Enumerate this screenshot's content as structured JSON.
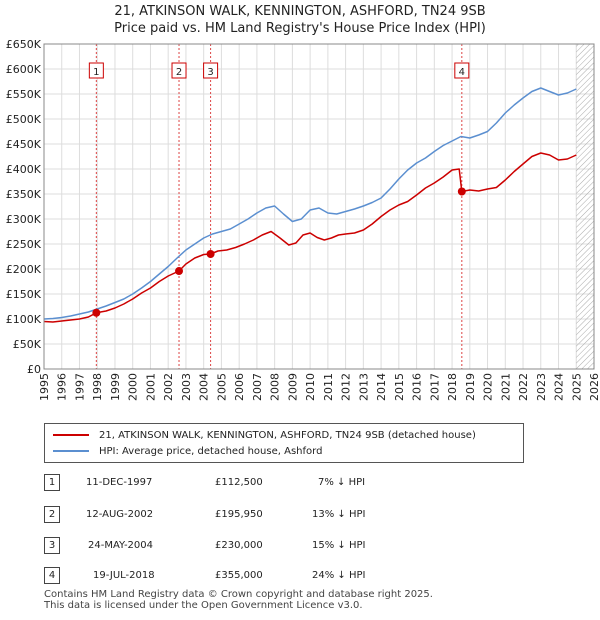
{
  "header": {
    "title": "21, ATKINSON WALK, KENNINGTON, ASHFORD, TN24 9SB",
    "subtitle": "Price paid vs. HM Land Registry's House Price Index (HPI)"
  },
  "chart_data": {
    "type": "line",
    "xlim": [
      1995,
      2026
    ],
    "ylim": [
      0,
      650000
    ],
    "x_ticks": [
      "1995",
      "1996",
      "1997",
      "1998",
      "1999",
      "2000",
      "2001",
      "2002",
      "2003",
      "2004",
      "2005",
      "2006",
      "2007",
      "2008",
      "2009",
      "2010",
      "2011",
      "2012",
      "2013",
      "2014",
      "2015",
      "2016",
      "2017",
      "2018",
      "2019",
      "2020",
      "2021",
      "2022",
      "2023",
      "2024",
      "2025",
      "2026"
    ],
    "y_ticks": [
      {
        "value": 0,
        "label": "£0"
      },
      {
        "value": 50000,
        "label": "£50K"
      },
      {
        "value": 100000,
        "label": "£100K"
      },
      {
        "value": 150000,
        "label": "£150K"
      },
      {
        "value": 200000,
        "label": "£200K"
      },
      {
        "value": 250000,
        "label": "£250K"
      },
      {
        "value": 300000,
        "label": "£300K"
      },
      {
        "value": 350000,
        "label": "£350K"
      },
      {
        "value": 400000,
        "label": "£400K"
      },
      {
        "value": 450000,
        "label": "£450K"
      },
      {
        "value": 500000,
        "label": "£500K"
      },
      {
        "value": 550000,
        "label": "£550K"
      },
      {
        "value": 600000,
        "label": "£600K"
      },
      {
        "value": 650000,
        "label": "£650K"
      }
    ],
    "grid": true,
    "hatched_after": 2025.0,
    "series": [
      {
        "name": "21, ATKINSON WALK, KENNINGTON, ASHFORD, TN24 9SB (detached house)",
        "color": "#cc0000",
        "x": [
          1995.0,
          1995.5,
          1996.0,
          1996.5,
          1997.0,
          1997.5,
          1997.95,
          1998.5,
          1999.0,
          1999.5,
          2000.0,
          2000.5,
          2001.0,
          2001.5,
          2002.0,
          2002.61,
          2003.0,
          2003.5,
          2004.0,
          2004.39,
          2004.8,
          2005.3,
          2005.8,
          2006.3,
          2006.8,
          2007.3,
          2007.8,
          2008.3,
          2008.8,
          2009.2,
          2009.6,
          2010.0,
          2010.4,
          2010.8,
          2011.2,
          2011.6,
          2012.0,
          2012.5,
          2013.0,
          2013.5,
          2014.0,
          2014.5,
          2015.0,
          2015.5,
          2016.0,
          2016.5,
          2017.0,
          2017.5,
          2018.0,
          2018.4,
          2018.55,
          2019.0,
          2019.5,
          2020.0,
          2020.5,
          2021.0,
          2021.5,
          2022.0,
          2022.5,
          2023.0,
          2023.5,
          2024.0,
          2024.5,
          2025.0
        ],
        "values": [
          95000,
          94000,
          96000,
          98000,
          100000,
          104000,
          112500,
          116000,
          122000,
          130000,
          140000,
          152000,
          162000,
          175000,
          186000,
          195950,
          210000,
          222000,
          229000,
          230000,
          236000,
          238000,
          243000,
          250000,
          258000,
          268000,
          275000,
          262000,
          248000,
          252000,
          268000,
          272000,
          263000,
          258000,
          262000,
          268000,
          270000,
          272000,
          278000,
          290000,
          305000,
          318000,
          328000,
          335000,
          348000,
          362000,
          372000,
          384000,
          398000,
          400000,
          355000,
          358000,
          356000,
          360000,
          363000,
          378000,
          395000,
          410000,
          425000,
          432000,
          428000,
          418000,
          420000,
          428000
        ]
      },
      {
        "name": "HPI: Average price, detached house, Ashford",
        "color": "#5b8fd0",
        "x": [
          1995.0,
          1995.5,
          1996.0,
          1996.5,
          1997.0,
          1997.5,
          1998.0,
          1998.5,
          1999.0,
          1999.5,
          2000.0,
          2000.5,
          2001.0,
          2001.5,
          2002.0,
          2002.5,
          2003.0,
          2003.5,
          2004.0,
          2004.5,
          2005.0,
          2005.5,
          2006.0,
          2006.5,
          2007.0,
          2007.5,
          2008.0,
          2008.5,
          2009.0,
          2009.5,
          2010.0,
          2010.5,
          2011.0,
          2011.5,
          2012.0,
          2012.5,
          2013.0,
          2013.5,
          2014.0,
          2014.5,
          2015.0,
          2015.5,
          2016.0,
          2016.5,
          2017.0,
          2017.5,
          2018.0,
          2018.5,
          2019.0,
          2019.5,
          2020.0,
          2020.5,
          2021.0,
          2021.5,
          2022.0,
          2022.5,
          2023.0,
          2023.5,
          2024.0,
          2024.5,
          2025.0
        ],
        "values": [
          100000,
          101000,
          103000,
          106000,
          110000,
          114000,
          120000,
          126000,
          133000,
          140000,
          150000,
          162000,
          175000,
          190000,
          205000,
          222000,
          238000,
          250000,
          262000,
          270000,
          275000,
          280000,
          290000,
          300000,
          312000,
          322000,
          326000,
          310000,
          295000,
          300000,
          318000,
          322000,
          312000,
          310000,
          315000,
          320000,
          326000,
          333000,
          342000,
          360000,
          380000,
          398000,
          412000,
          422000,
          435000,
          447000,
          456000,
          465000,
          462000,
          468000,
          475000,
          492000,
          512000,
          528000,
          542000,
          555000,
          562000,
          555000,
          548000,
          552000,
          560000
        ]
      }
    ],
    "sales": [
      {
        "label": "1",
        "x": 1997.95,
        "value": 112500
      },
      {
        "label": "2",
        "x": 2002.61,
        "value": 195950
      },
      {
        "label": "3",
        "x": 2004.39,
        "value": 230000
      },
      {
        "label": "4",
        "x": 2018.55,
        "value": 355000
      }
    ]
  },
  "legend": {
    "property_label": "21, ATKINSON WALK, KENNINGTON, ASHFORD, TN24 9SB (detached house)",
    "hpi_label": "HPI: Average price, detached house, Ashford"
  },
  "sales_table": [
    {
      "num": "1",
      "date": "11-DEC-1997",
      "price": "£112,500",
      "hpi": "7% ↓ HPI"
    },
    {
      "num": "2",
      "date": "12-AUG-2002",
      "price": "£195,950",
      "hpi": "13% ↓ HPI"
    },
    {
      "num": "3",
      "date": "24-MAY-2004",
      "price": "£230,000",
      "hpi": "15% ↓ HPI"
    },
    {
      "num": "4",
      "date": "19-JUL-2018",
      "price": "£355,000",
      "hpi": "24% ↓ HPI"
    }
  ],
  "footer": {
    "line1": "Contains HM Land Registry data © Crown copyright and database right 2025.",
    "line2": "This data is licensed under the Open Government Licence v3.0."
  }
}
